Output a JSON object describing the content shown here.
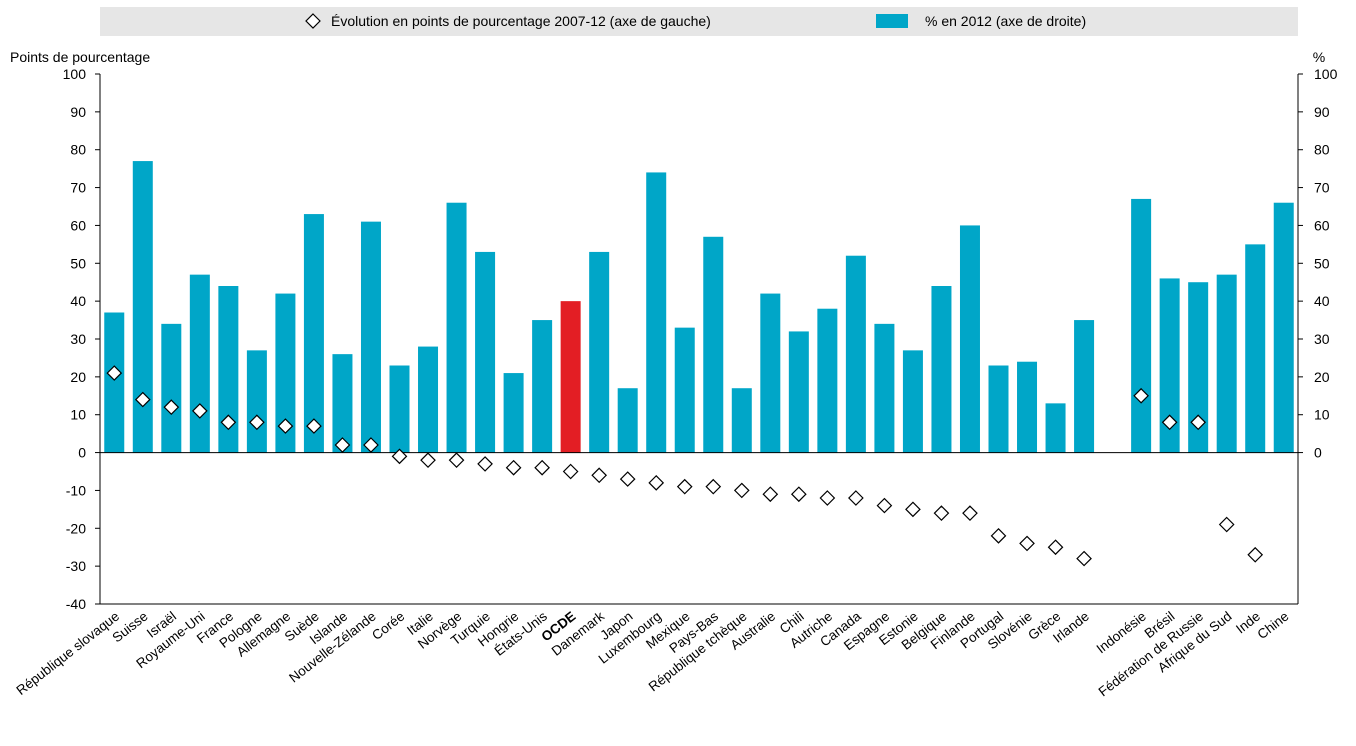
{
  "chart_data": {
    "type": "bar",
    "legend": {
      "placement": "top",
      "diamond_label": "Évolution en points de pourcentage 2007-12 (axe de gauche)",
      "bar_label": "% en 2012 (axe de droite)"
    },
    "left_axis_title": "Points de pourcentage",
    "right_axis_title": "%",
    "left_ylim": [
      -40,
      100
    ],
    "right_ylim": [
      0,
      100
    ],
    "left_ticks": [
      "100",
      "90",
      "80",
      "70",
      "60",
      "50",
      "40",
      "30",
      "20",
      "10",
      "0",
      "-10",
      "-20",
      "-30",
      "-40"
    ],
    "right_ticks": [
      "100",
      "90",
      "80",
      "70",
      "60",
      "50",
      "40",
      "30",
      "20",
      "10",
      "0"
    ],
    "grid": false,
    "colors": {
      "bar": "#00a6c8",
      "highlight": "#e31e24",
      "diamond": "#ffffff",
      "legend_bg": "#e6e6e6"
    },
    "categories": [
      "République slovaque",
      "Suisse",
      "Israël",
      "Royaume-Uni",
      "France",
      "Pologne",
      "Allemagne",
      "Suède",
      "Islande",
      "Nouvelle-Zélande",
      "Corée",
      "Italie",
      "Norvège",
      "Turquie",
      "Hongrie",
      "États-Unis",
      "OCDE",
      "Danemark",
      "Japon",
      "Luxembourg",
      "Mexique",
      "Pays-Bas",
      "République tchèque",
      "Australie",
      "Chili",
      "Autriche",
      "Canada",
      "Espagne",
      "Estonie",
      "Belgique",
      "Finlande",
      "Portugal",
      "Slovénie",
      "Grèce",
      "Irlande",
      "",
      "Indonésie",
      "Brésil",
      "Fédération de Russie",
      "Afrique du Sud",
      "Inde",
      "Chine"
    ],
    "highlight_category": "OCDE",
    "series": [
      {
        "name": "% en 2012 (axe de droite)",
        "axis": "right",
        "mark": "bar",
        "values": [
          37,
          77,
          34,
          47,
          44,
          27,
          42,
          63,
          26,
          61,
          23,
          28,
          66,
          53,
          21,
          35,
          40,
          53,
          17,
          74,
          33,
          57,
          17,
          42,
          32,
          38,
          52,
          34,
          27,
          44,
          60,
          23,
          24,
          13,
          35,
          null,
          67,
          46,
          45,
          47,
          55,
          66
        ]
      },
      {
        "name": "Évolution en points de pourcentage 2007-12 (axe de gauche)",
        "axis": "left",
        "mark": "diamond",
        "values": [
          21,
          14,
          12,
          11,
          8,
          8,
          7,
          7,
          2,
          2,
          -1,
          -2,
          -2,
          -3,
          -4,
          -4,
          -5,
          -6,
          -7,
          -8,
          -9,
          -9,
          -10,
          -11,
          -11,
          -12,
          -12,
          -14,
          -15,
          -16,
          -16,
          -22,
          -24,
          -25,
          -28,
          null,
          15,
          8,
          8,
          -19,
          -27,
          null
        ]
      }
    ]
  }
}
